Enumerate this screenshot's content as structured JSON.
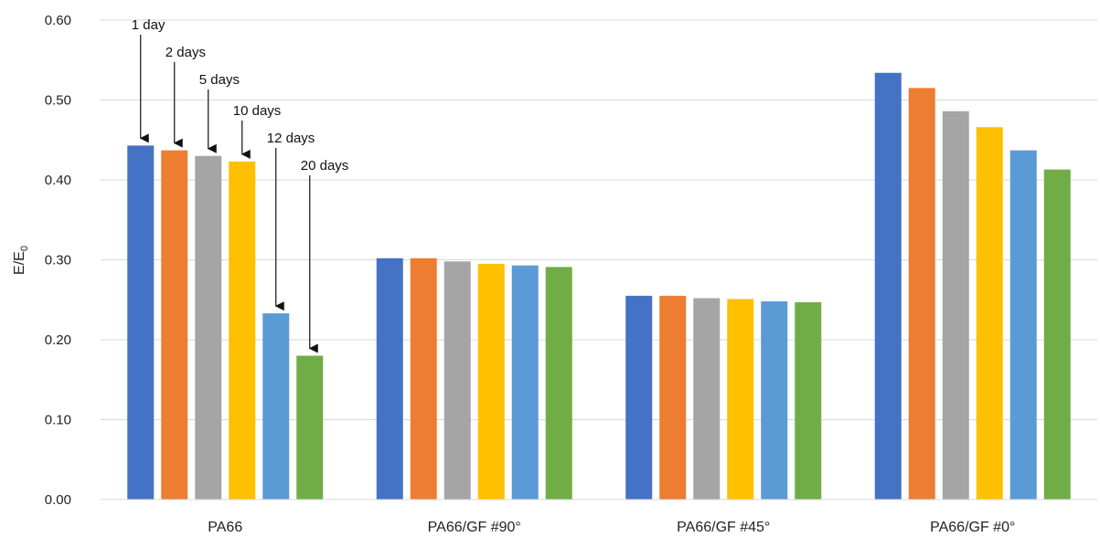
{
  "chart_data": {
    "type": "bar",
    "categories": [
      "PA66",
      "PA66/GF #90°",
      "PA66/GF #45°",
      "PA66/GF #0°"
    ],
    "series": [
      {
        "name": "1 day",
        "values": [
          0.443,
          0.302,
          0.255,
          0.534
        ],
        "color": "#4472C4"
      },
      {
        "name": "2 days",
        "values": [
          0.437,
          0.302,
          0.255,
          0.515
        ],
        "color": "#ED7D31"
      },
      {
        "name": "5 days",
        "values": [
          0.43,
          0.298,
          0.252,
          0.486
        ],
        "color": "#A5A5A5"
      },
      {
        "name": "10 days",
        "values": [
          0.423,
          0.295,
          0.251,
          0.466
        ],
        "color": "#FFC000"
      },
      {
        "name": "12 days",
        "values": [
          0.233,
          0.293,
          0.248,
          0.437
        ],
        "color": "#5B9BD5"
      },
      {
        "name": "20 days",
        "values": [
          0.18,
          0.291,
          0.247,
          0.413
        ],
        "color": "#70AD47"
      }
    ],
    "ylabel_main": "E/E",
    "ylabel_sub": "0",
    "ylim": [
      0,
      0.6
    ],
    "yticks": [
      "0.00",
      "0.10",
      "0.20",
      "0.30",
      "0.40",
      "0.50",
      "0.60"
    ],
    "grid": true,
    "annotations_category": "PA66"
  }
}
